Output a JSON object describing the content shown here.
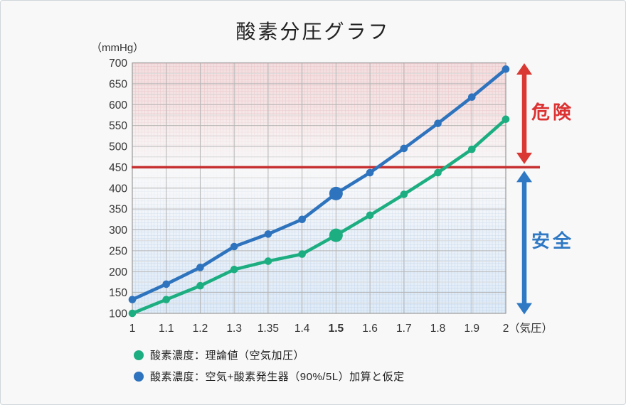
{
  "card": {
    "title": "酸素分圧グラフ"
  },
  "colors": {
    "series_green": "#1cae80",
    "series_blue": "#2e73bd",
    "threshold_red": "#c63031",
    "arrow_red": "#da3832",
    "arrow_blue": "#2e78c4",
    "danger_text": "#dc3232",
    "safe_text": "#2e78c4",
    "grid_major": "#b5b5b5",
    "grid_minor": "#dadada",
    "plot_border": "#999999",
    "bg_pink": "#f3dedf",
    "bg_blue": "#dfebf7"
  },
  "chart_data": {
    "type": "line",
    "title": "酸素分圧グラフ",
    "y_unit_label": "（mmHg）",
    "x_unit_label": "（気圧）",
    "categories": [
      "1",
      "1.1",
      "1.2",
      "1.3",
      "1.35",
      "1.4",
      "1.5",
      "1.6",
      "1.7",
      "1.8",
      "1.9",
      "2"
    ],
    "emphasized_category": "1.5",
    "y_ticks": [
      100,
      150,
      200,
      250,
      300,
      350,
      400,
      450,
      500,
      550,
      600,
      650,
      700
    ],
    "ylim": [
      100,
      700
    ],
    "grid": true,
    "legend_position": "bottom-left",
    "threshold": {
      "value": 450,
      "label": "",
      "color": "#c63031"
    },
    "series": [
      {
        "name": "酸素濃度：理論値（空気加圧）",
        "color": "#1cae80",
        "values": [
          100,
          133,
          166,
          205,
          225,
          242,
          287,
          335,
          385,
          437,
          493,
          565
        ],
        "highlight_index": 6
      },
      {
        "name": "酸素濃度：空気+酸素発生器（90%/5L）加算と仮定",
        "color": "#2e73bd",
        "values": [
          133,
          170,
          210,
          260,
          290,
          325,
          387,
          437,
          495,
          555,
          618,
          685
        ],
        "highlight_index": 6
      }
    ],
    "annotations": {
      "danger": "危険",
      "safe": "安全"
    }
  }
}
